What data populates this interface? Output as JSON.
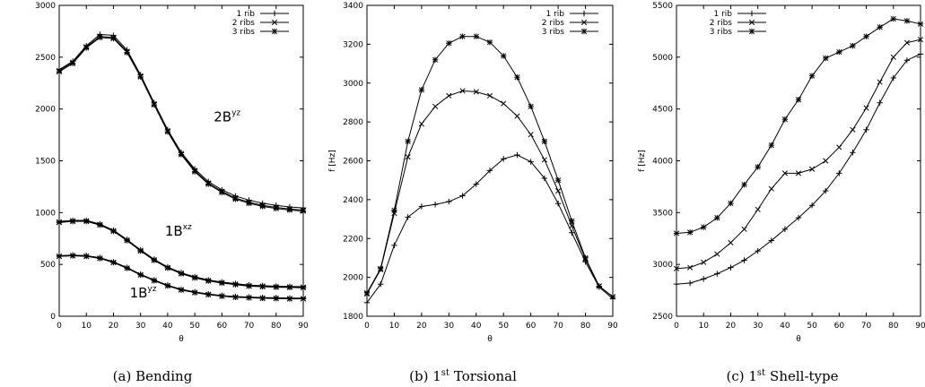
{
  "chart_data": [
    {
      "type": "line",
      "caption": "(a) Bending",
      "xlabel": "θ",
      "ylabel": "",
      "xlim": [
        0,
        90
      ],
      "ylim": [
        0,
        3000
      ],
      "xticks": [
        0,
        10,
        20,
        30,
        40,
        50,
        60,
        70,
        80,
        90
      ],
      "yticks": [
        0,
        500,
        1000,
        1500,
        2000,
        2500,
        3000
      ],
      "legend": "top-right",
      "x": [
        0,
        5,
        10,
        15,
        20,
        25,
        30,
        35,
        40,
        45,
        50,
        55,
        60,
        65,
        70,
        75,
        80,
        85,
        90
      ],
      "series": [
        {
          "name": "1 rib",
          "marker": "plus",
          "curves": [
            [
              585,
              590,
              585,
              565,
              525,
              470,
              405,
              350,
              300,
              260,
              235,
              215,
              200,
              190,
              185,
              180,
              178,
              175,
              175
            ],
            [
              915,
              925,
              925,
              890,
              830,
              740,
              640,
              550,
              475,
              420,
              380,
              350,
              330,
              315,
              300,
              295,
              290,
              288,
              285
            ],
            [
              2380,
              2460,
              2610,
              2720,
              2710,
              2570,
              2330,
              2060,
              1800,
              1580,
              1420,
              1300,
              1220,
              1160,
              1120,
              1090,
              1070,
              1055,
              1045
            ]
          ]
        },
        {
          "name": "2 ribs",
          "marker": "x",
          "curves": [
            [
              580,
              585,
              580,
              560,
              520,
              465,
              400,
              345,
              295,
              255,
              230,
              210,
              195,
              185,
              180,
              175,
              173,
              170,
              170
            ],
            [
              910,
              920,
              920,
              885,
              825,
              735,
              635,
              545,
              470,
              415,
              375,
              345,
              325,
              310,
              295,
              290,
              285,
              283,
              280
            ],
            [
              2370,
              2450,
              2600,
              2700,
              2690,
              2555,
              2320,
              2050,
              1790,
              1570,
              1405,
              1285,
              1205,
              1140,
              1100,
              1070,
              1050,
              1035,
              1025
            ]
          ]
        },
        {
          "name": "3 ribs",
          "marker": "star",
          "curves": [
            [
              578,
              583,
              578,
              558,
              518,
              463,
              398,
              343,
              293,
              253,
              228,
              208,
              193,
              183,
              178,
              173,
              171,
              168,
              168
            ],
            [
              905,
              915,
              915,
              880,
              820,
              730,
              630,
              540,
              465,
              410,
              370,
              340,
              320,
              305,
              290,
              285,
              280,
              278,
              275
            ],
            [
              2360,
              2440,
              2590,
              2690,
              2680,
              2545,
              2310,
              2040,
              1780,
              1560,
              1395,
              1275,
              1195,
              1130,
              1090,
              1060,
              1040,
              1025,
              1015
            ]
          ]
        }
      ],
      "annotations": [
        {
          "base": "2B",
          "sup": "yz",
          "x": 57,
          "y": 1880
        },
        {
          "base": "1B",
          "sup": "xz",
          "x": 39,
          "y": 780
        },
        {
          "base": "1B",
          "sup": "yz",
          "x": 26,
          "y": 180
        }
      ]
    },
    {
      "type": "line",
      "caption_pre": "(b) 1",
      "caption_sup": "st",
      "caption_post": "Torsional",
      "xlabel": "θ",
      "ylabel": "f [Hz]",
      "xlim": [
        0,
        90
      ],
      "ylim": [
        1800,
        3400
      ],
      "xticks": [
        0,
        10,
        20,
        30,
        40,
        50,
        60,
        70,
        80,
        90
      ],
      "yticks": [
        1800,
        2000,
        2200,
        2400,
        2600,
        2800,
        3000,
        3200,
        3400
      ],
      "legend": "top-right",
      "x": [
        0,
        5,
        10,
        15,
        20,
        25,
        30,
        35,
        40,
        45,
        50,
        55,
        60,
        65,
        70,
        75,
        80,
        85,
        90
      ],
      "series": [
        {
          "name": "1 rib",
          "marker": "plus",
          "values": [
            1870,
            1965,
            2165,
            2310,
            2365,
            2375,
            2390,
            2420,
            2480,
            2550,
            2610,
            2630,
            2595,
            2510,
            2380,
            2230,
            2080,
            1950,
            1890
          ]
        },
        {
          "name": "2 ribs",
          "marker": "x",
          "values": [
            1915,
            2040,
            2330,
            2620,
            2790,
            2880,
            2935,
            2960,
            2955,
            2935,
            2895,
            2830,
            2735,
            2605,
            2445,
            2265,
            2095,
            1955,
            1900
          ]
        },
        {
          "name": "3 ribs",
          "marker": "star",
          "values": [
            1920,
            2045,
            2345,
            2700,
            2965,
            3120,
            3205,
            3240,
            3240,
            3210,
            3140,
            3030,
            2880,
            2700,
            2500,
            2290,
            2100,
            1955,
            1900
          ]
        }
      ]
    },
    {
      "type": "line",
      "caption_pre": "(c) 1",
      "caption_sup": "st",
      "caption_post": "Shell-type",
      "xlabel": "θ",
      "ylabel": "f [Hz]",
      "xlim": [
        0,
        90
      ],
      "ylim": [
        2500,
        5500
      ],
      "xticks": [
        0,
        10,
        20,
        30,
        40,
        50,
        60,
        70,
        80,
        90
      ],
      "yticks": [
        2500,
        3000,
        3500,
        4000,
        4500,
        5000,
        5500
      ],
      "legend": "top-left",
      "x": [
        0,
        5,
        10,
        15,
        20,
        25,
        30,
        35,
        40,
        45,
        50,
        55,
        60,
        65,
        70,
        75,
        80,
        85,
        90
      ],
      "series": [
        {
          "name": "1 rib",
          "marker": "plus",
          "values": [
            2810,
            2820,
            2860,
            2910,
            2970,
            3040,
            3130,
            3230,
            3340,
            3450,
            3570,
            3710,
            3880,
            4080,
            4300,
            4560,
            4800,
            4970,
            5030
          ]
        },
        {
          "name": "2 ribs",
          "marker": "x",
          "values": [
            2960,
            2970,
            3020,
            3100,
            3210,
            3340,
            3530,
            3730,
            3880,
            3880,
            3920,
            4000,
            4130,
            4300,
            4510,
            4760,
            5000,
            5140,
            5170
          ]
        },
        {
          "name": "3 ribs",
          "marker": "star",
          "values": [
            3300,
            3310,
            3360,
            3450,
            3590,
            3770,
            3940,
            4150,
            4400,
            4590,
            4820,
            4990,
            5050,
            5110,
            5200,
            5290,
            5370,
            5350,
            5320
          ]
        }
      ]
    }
  ]
}
